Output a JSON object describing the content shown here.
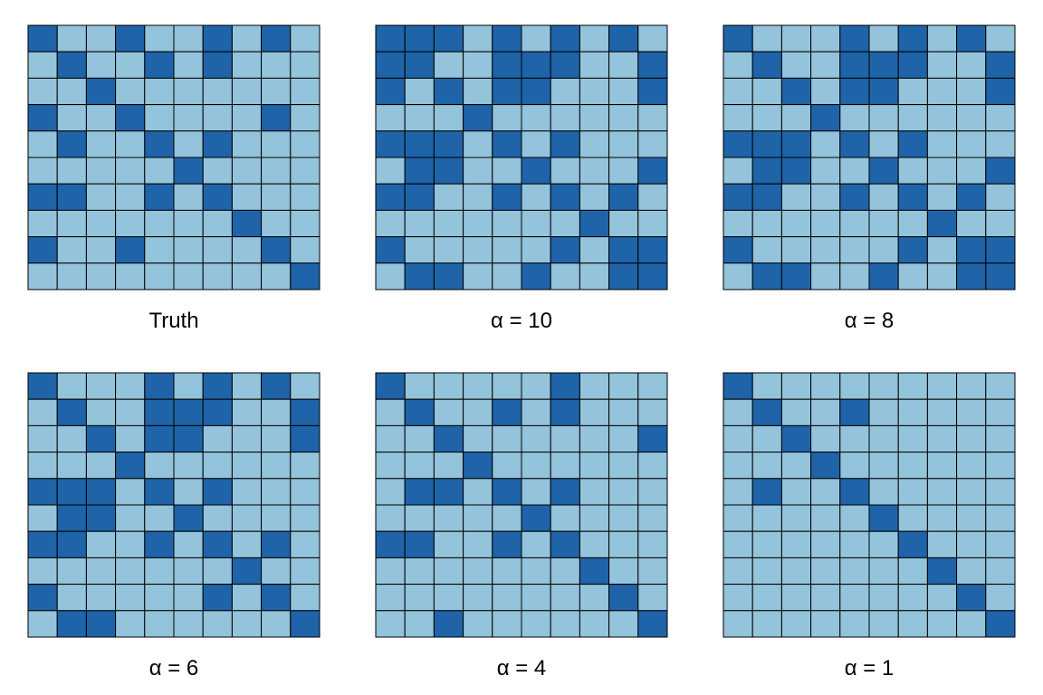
{
  "colors": {
    "dark": "#1f63a8",
    "light": "#94c3dc",
    "border": "#000000"
  },
  "chart_data": [
    {
      "type": "heatmap",
      "title": "Truth",
      "rows": 10,
      "cols": 10,
      "values": [
        [
          1,
          0,
          0,
          1,
          0,
          0,
          1,
          0,
          1,
          0
        ],
        [
          0,
          1,
          0,
          0,
          1,
          0,
          1,
          0,
          0,
          0
        ],
        [
          0,
          0,
          1,
          0,
          0,
          0,
          0,
          0,
          0,
          0
        ],
        [
          1,
          0,
          0,
          1,
          0,
          0,
          0,
          0,
          1,
          0
        ],
        [
          0,
          1,
          0,
          0,
          1,
          0,
          1,
          0,
          0,
          0
        ],
        [
          0,
          0,
          0,
          0,
          0,
          1,
          0,
          0,
          0,
          0
        ],
        [
          1,
          1,
          0,
          0,
          1,
          0,
          1,
          0,
          0,
          0
        ],
        [
          0,
          0,
          0,
          0,
          0,
          0,
          0,
          1,
          0,
          0
        ],
        [
          1,
          0,
          0,
          1,
          0,
          0,
          0,
          0,
          1,
          0
        ],
        [
          0,
          0,
          0,
          0,
          0,
          0,
          0,
          0,
          0,
          1
        ]
      ]
    },
    {
      "type": "heatmap",
      "title": "α = 10",
      "rows": 10,
      "cols": 10,
      "values": [
        [
          1,
          1,
          1,
          0,
          1,
          0,
          1,
          0,
          1,
          0
        ],
        [
          1,
          1,
          0,
          0,
          1,
          1,
          1,
          0,
          0,
          1
        ],
        [
          1,
          0,
          1,
          0,
          1,
          1,
          0,
          0,
          0,
          1
        ],
        [
          0,
          0,
          0,
          1,
          0,
          0,
          0,
          0,
          0,
          0
        ],
        [
          1,
          1,
          1,
          0,
          1,
          0,
          1,
          0,
          0,
          0
        ],
        [
          0,
          1,
          1,
          0,
          0,
          1,
          0,
          0,
          0,
          1
        ],
        [
          1,
          1,
          0,
          0,
          1,
          0,
          1,
          0,
          1,
          0
        ],
        [
          0,
          0,
          0,
          0,
          0,
          0,
          0,
          1,
          0,
          0
        ],
        [
          1,
          0,
          0,
          0,
          0,
          0,
          1,
          0,
          1,
          1
        ],
        [
          0,
          1,
          1,
          0,
          0,
          1,
          0,
          0,
          1,
          1
        ]
      ]
    },
    {
      "type": "heatmap",
      "title": "α = 8",
      "rows": 10,
      "cols": 10,
      "values": [
        [
          1,
          0,
          0,
          0,
          1,
          0,
          1,
          0,
          1,
          0
        ],
        [
          0,
          1,
          0,
          0,
          1,
          1,
          1,
          0,
          0,
          1
        ],
        [
          0,
          0,
          1,
          0,
          1,
          1,
          0,
          0,
          0,
          1
        ],
        [
          0,
          0,
          0,
          1,
          0,
          0,
          0,
          0,
          0,
          0
        ],
        [
          1,
          1,
          1,
          0,
          1,
          0,
          1,
          0,
          0,
          0
        ],
        [
          0,
          1,
          1,
          0,
          0,
          1,
          0,
          0,
          0,
          1
        ],
        [
          1,
          1,
          0,
          0,
          1,
          0,
          1,
          0,
          1,
          0
        ],
        [
          0,
          0,
          0,
          0,
          0,
          0,
          0,
          1,
          0,
          0
        ],
        [
          1,
          0,
          0,
          0,
          0,
          0,
          1,
          0,
          1,
          1
        ],
        [
          0,
          1,
          1,
          0,
          0,
          1,
          0,
          0,
          1,
          1
        ]
      ]
    },
    {
      "type": "heatmap",
      "title": "α = 6",
      "rows": 10,
      "cols": 10,
      "values": [
        [
          1,
          0,
          0,
          0,
          1,
          0,
          1,
          0,
          1,
          0
        ],
        [
          0,
          1,
          0,
          0,
          1,
          1,
          1,
          0,
          0,
          1
        ],
        [
          0,
          0,
          1,
          0,
          1,
          1,
          0,
          0,
          0,
          1
        ],
        [
          0,
          0,
          0,
          1,
          0,
          0,
          0,
          0,
          0,
          0
        ],
        [
          1,
          1,
          1,
          0,
          1,
          0,
          1,
          0,
          0,
          0
        ],
        [
          0,
          1,
          1,
          0,
          0,
          1,
          0,
          0,
          0,
          0
        ],
        [
          1,
          1,
          0,
          0,
          1,
          0,
          1,
          0,
          1,
          0
        ],
        [
          0,
          0,
          0,
          0,
          0,
          0,
          0,
          1,
          0,
          0
        ],
        [
          1,
          0,
          0,
          0,
          0,
          0,
          1,
          0,
          1,
          0
        ],
        [
          0,
          1,
          1,
          0,
          0,
          0,
          0,
          0,
          0,
          1
        ]
      ]
    },
    {
      "type": "heatmap",
      "title": "α = 4",
      "rows": 10,
      "cols": 10,
      "values": [
        [
          1,
          0,
          0,
          0,
          0,
          0,
          1,
          0,
          0,
          0
        ],
        [
          0,
          1,
          0,
          0,
          1,
          0,
          1,
          0,
          0,
          0
        ],
        [
          0,
          0,
          1,
          0,
          0,
          0,
          0,
          0,
          0,
          1
        ],
        [
          0,
          0,
          0,
          1,
          0,
          0,
          0,
          0,
          0,
          0
        ],
        [
          0,
          1,
          1,
          0,
          1,
          0,
          1,
          0,
          0,
          0
        ],
        [
          0,
          0,
          0,
          0,
          0,
          1,
          0,
          0,
          0,
          0
        ],
        [
          1,
          1,
          0,
          0,
          1,
          0,
          1,
          0,
          0,
          0
        ],
        [
          0,
          0,
          0,
          0,
          0,
          0,
          0,
          1,
          0,
          0
        ],
        [
          0,
          0,
          0,
          0,
          0,
          0,
          0,
          0,
          1,
          0
        ],
        [
          0,
          0,
          1,
          0,
          0,
          0,
          0,
          0,
          0,
          1
        ]
      ]
    },
    {
      "type": "heatmap",
      "title": "α = 1",
      "rows": 10,
      "cols": 10,
      "values": [
        [
          1,
          0,
          0,
          0,
          0,
          0,
          0,
          0,
          0,
          0
        ],
        [
          0,
          1,
          0,
          0,
          1,
          0,
          0,
          0,
          0,
          0
        ],
        [
          0,
          0,
          1,
          0,
          0,
          0,
          0,
          0,
          0,
          0
        ],
        [
          0,
          0,
          0,
          1,
          0,
          0,
          0,
          0,
          0,
          0
        ],
        [
          0,
          1,
          0,
          0,
          1,
          0,
          0,
          0,
          0,
          0
        ],
        [
          0,
          0,
          0,
          0,
          0,
          1,
          0,
          0,
          0,
          0
        ],
        [
          0,
          0,
          0,
          0,
          0,
          0,
          1,
          0,
          0,
          0
        ],
        [
          0,
          0,
          0,
          0,
          0,
          0,
          0,
          1,
          0,
          0
        ],
        [
          0,
          0,
          0,
          0,
          0,
          0,
          0,
          0,
          1,
          0
        ],
        [
          0,
          0,
          0,
          0,
          0,
          0,
          0,
          0,
          0,
          1
        ]
      ]
    }
  ]
}
